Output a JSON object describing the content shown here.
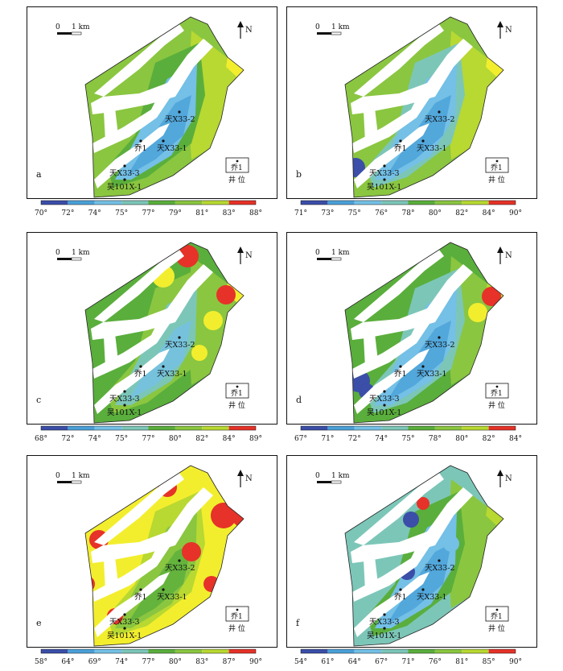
{
  "panels": [
    {
      "id": "a",
      "letter": "a",
      "scale_label": "1 km",
      "scale_zero": "0",
      "north_label": "N",
      "legend_well_marker": "乔1",
      "legend_well_caption": "井 位",
      "wells": [
        {
          "label": "天X33-2"
        },
        {
          "label": "乔1"
        },
        {
          "label": "天X33-1"
        },
        {
          "label": "天X33-3"
        },
        {
          "label": "吴101X-1"
        }
      ],
      "colorbar": {
        "colors": [
          "#3b4ea8",
          "#4aa0d8",
          "#74c0e6",
          "#7cc6b8",
          "#5aae3c",
          "#8ac640",
          "#b8d832",
          "#f2ee2e",
          "#e63228"
        ],
        "ticks": [
          "70°",
          "72°",
          "74°",
          "75°",
          "77°",
          "79°",
          "81°",
          "83°",
          "88°"
        ]
      }
    },
    {
      "id": "b",
      "letter": "b",
      "scale_label": "1 km",
      "scale_zero": "0",
      "north_label": "N",
      "legend_well_marker": "乔1",
      "legend_well_caption": "井 位",
      "wells": [
        {
          "label": "天X33-2"
        },
        {
          "label": "乔1"
        },
        {
          "label": "天X33-1"
        },
        {
          "label": "天X33-3"
        },
        {
          "label": "吴101X-1"
        }
      ],
      "colorbar": {
        "colors": [
          "#3b4ea8",
          "#4aa0d8",
          "#74c0e6",
          "#7cc6b8",
          "#5aae3c",
          "#8ac640",
          "#b8d832",
          "#f2ee2e",
          "#e63228"
        ],
        "ticks": [
          "71°",
          "73°",
          "75°",
          "76°",
          "78°",
          "80°",
          "82°",
          "84°",
          "90°"
        ]
      }
    },
    {
      "id": "c",
      "letter": "c",
      "scale_label": "1 km",
      "scale_zero": "0",
      "north_label": "N",
      "legend_well_marker": "乔1",
      "legend_well_caption": "井 位",
      "wells": [
        {
          "label": "天X33-2"
        },
        {
          "label": "乔1"
        },
        {
          "label": "天X33-1"
        },
        {
          "label": "天X33-3"
        },
        {
          "label": "吴101X-1"
        }
      ],
      "colorbar": {
        "colors": [
          "#3b4ea8",
          "#4aa0d8",
          "#74c0e6",
          "#7cc6b8",
          "#5aae3c",
          "#8ac640",
          "#b8d832",
          "#f2ee2e",
          "#e63228"
        ],
        "ticks": [
          "68°",
          "72°",
          "74°",
          "75°",
          "77°",
          "80°",
          "82°",
          "84°",
          "89°"
        ]
      }
    },
    {
      "id": "d",
      "letter": "d",
      "scale_label": "1 km",
      "scale_zero": "0",
      "north_label": "N",
      "legend_well_marker": "乔1",
      "legend_well_caption": "井 位",
      "wells": [
        {
          "label": "天X33-2"
        },
        {
          "label": "乔1"
        },
        {
          "label": "天X33-1"
        },
        {
          "label": "天X33-3"
        },
        {
          "label": "吴101X-1"
        }
      ],
      "colorbar": {
        "colors": [
          "#3b4ea8",
          "#4aa0d8",
          "#74c0e6",
          "#7cc6b8",
          "#5aae3c",
          "#8ac640",
          "#b8d832",
          "#f2ee2e",
          "#e63228"
        ],
        "ticks": [
          "67°",
          "71°",
          "72°",
          "74°",
          "75°",
          "78°",
          "80°",
          "82°",
          "84°"
        ]
      }
    },
    {
      "id": "e",
      "letter": "e",
      "scale_label": "1 km",
      "scale_zero": "0",
      "north_label": "N",
      "legend_well_marker": "乔1",
      "legend_well_caption": "井 位",
      "wells": [
        {
          "label": "天X33-2"
        },
        {
          "label": "乔1"
        },
        {
          "label": "天X33-1"
        },
        {
          "label": "天X33-3"
        },
        {
          "label": "吴101X-1"
        }
      ],
      "colorbar": {
        "colors": [
          "#3b4ea8",
          "#4aa0d8",
          "#74c0e6",
          "#7cc6b8",
          "#5aae3c",
          "#8ac640",
          "#b8d832",
          "#f2ee2e",
          "#e63228"
        ],
        "ticks": [
          "58°",
          "64°",
          "69°",
          "74°",
          "77°",
          "80°",
          "83°",
          "87°",
          "90°"
        ]
      }
    },
    {
      "id": "f",
      "letter": "f",
      "scale_label": "1 km",
      "scale_zero": "0",
      "north_label": "N",
      "legend_well_marker": "乔1",
      "legend_well_caption": "井 位",
      "wells": [
        {
          "label": "天X33-2"
        },
        {
          "label": "乔1"
        },
        {
          "label": "天X33-1"
        },
        {
          "label": "天X33-3"
        },
        {
          "label": "吴101X-1"
        }
      ],
      "colorbar": {
        "colors": [
          "#3b4ea8",
          "#4aa0d8",
          "#74c0e6",
          "#7cc6b8",
          "#5aae3c",
          "#8ac640",
          "#b8d832",
          "#f2ee2e",
          "#e63228"
        ],
        "ticks": [
          "54°",
          "61°",
          "64°",
          "67°",
          "71°",
          "76°",
          "81°",
          "85°",
          "90°"
        ]
      }
    }
  ]
}
